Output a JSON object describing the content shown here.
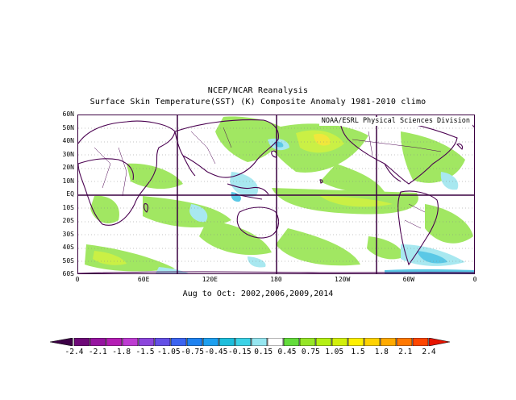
{
  "title_line1": "NCEP/NCAR Reanalysis",
  "title_line2": "Surface Skin Temperature(SST) (K) Composite Anomaly 1981-2010 climo",
  "credit": "NOAA/ESRL Physical Sciences Division",
  "subtitle": "Aug to Oct: 2002,2006,2009,2014",
  "lat_labels": [
    "60N",
    "50N",
    "40N",
    "30N",
    "20N",
    "10N",
    "EQ",
    "10S",
    "20S",
    "30S",
    "40S",
    "50S",
    "60S"
  ],
  "lon_labels": [
    "0",
    "60E",
    "120E",
    "180",
    "120W",
    "60W",
    "0"
  ],
  "colorbar": {
    "colors": [
      "#3c0046",
      "#6e0a78",
      "#9614a0",
      "#b41eb4",
      "#be3cd2",
      "#8c46dc",
      "#6450e6",
      "#3c64f0",
      "#1e82f0",
      "#1ea0f0",
      "#1ebedc",
      "#3cd2e6",
      "#96e6f0",
      "#ffffff",
      "#64dc3c",
      "#96e628",
      "#b4f014",
      "#d2f00a",
      "#fff000",
      "#ffd200",
      "#ffaa00",
      "#ff7800",
      "#ff4600",
      "#e61400"
    ],
    "labels": [
      "-2.4",
      "-2.1",
      "-1.8",
      "-1.5",
      "-1.05",
      "-0.75",
      "-0.45",
      "-0.15",
      "0.15",
      "0.45",
      "0.75",
      "1.05",
      "1.5",
      "1.8",
      "2.1",
      "2.4"
    ]
  },
  "field_colors": {
    "land_outline": "#4a0050",
    "warm_light": "#9de65a",
    "warm_mid": "#c8f03c",
    "warm_strong": "#f0e632",
    "cool_light": "#a8e8f0",
    "cool_mid": "#5ac8e6"
  }
}
